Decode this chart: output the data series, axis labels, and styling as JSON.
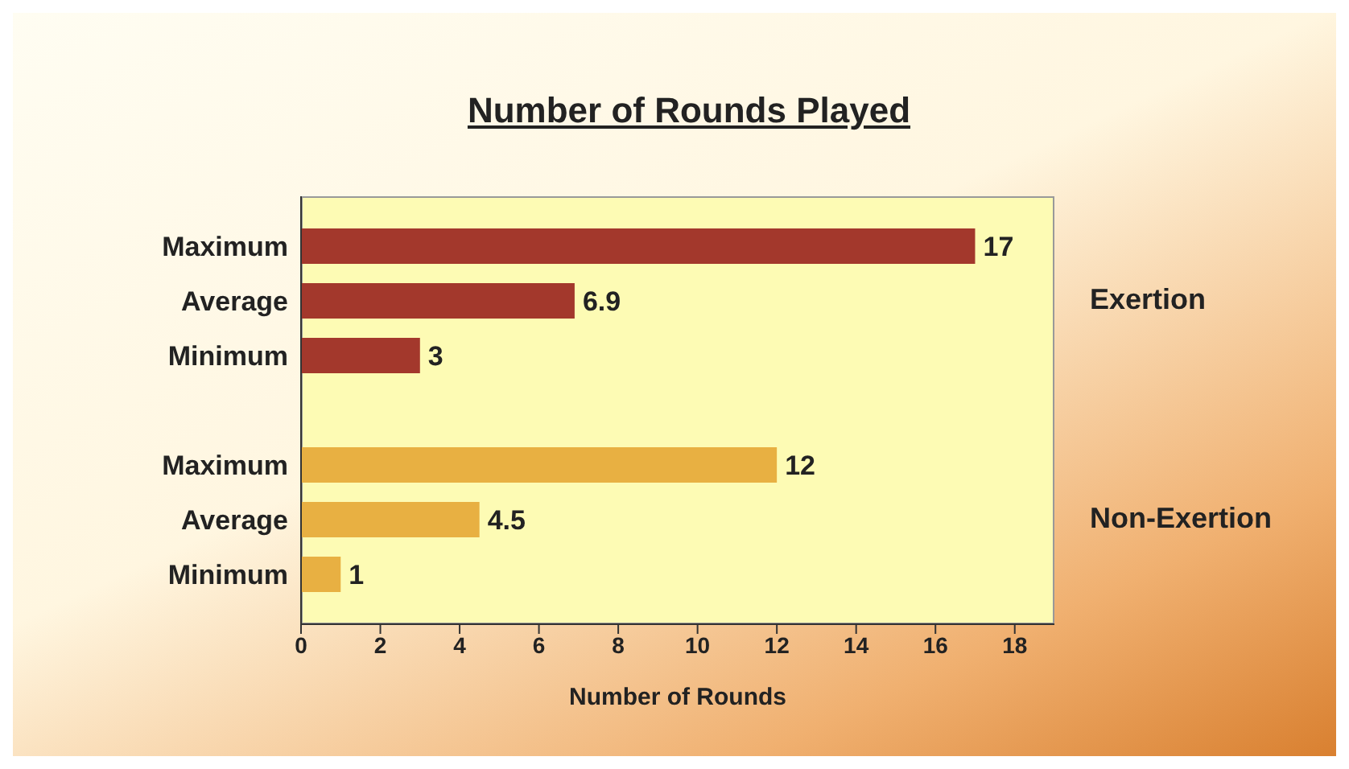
{
  "chart_data": {
    "type": "bar",
    "orientation": "horizontal",
    "title": "Number of Rounds Played",
    "xlabel": "Number of Rounds",
    "categories": [
      "Maximum",
      "Average",
      "Minimum",
      null,
      "Maximum",
      "Average",
      "Minimum"
    ],
    "series": [
      {
        "name": "Exertion",
        "color": "#a3382c",
        "values": [
          17,
          6.9,
          3,
          null,
          null,
          null,
          null
        ]
      },
      {
        "name": "Non-Exertion",
        "color": "#e8b042",
        "values": [
          null,
          null,
          null,
          null,
          12,
          4.5,
          1
        ]
      }
    ],
    "xlim": [
      0,
      19
    ],
    "xticks": [
      0,
      2,
      4,
      6,
      8,
      10,
      12,
      14,
      16,
      18
    ],
    "data_labels": true
  }
}
